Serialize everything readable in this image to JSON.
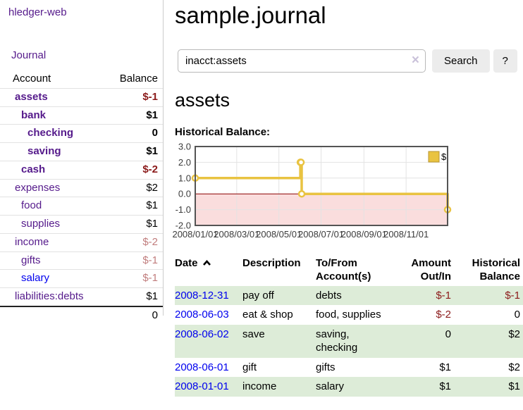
{
  "sidebar": {
    "brand": "hledger-web",
    "journal_link": "Journal",
    "account_header": "Account",
    "balance_header": "Balance",
    "accounts": [
      {
        "name": "assets",
        "balance": "$-1"
      },
      {
        "name": "bank",
        "balance": "$1"
      },
      {
        "name": "checking",
        "balance": "0"
      },
      {
        "name": "saving",
        "balance": "$1"
      },
      {
        "name": "cash",
        "balance": "$-2"
      },
      {
        "name": "expenses",
        "balance": "$2"
      },
      {
        "name": "food",
        "balance": "$1"
      },
      {
        "name": "supplies",
        "balance": "$1"
      },
      {
        "name": "income",
        "balance": "$-2"
      },
      {
        "name": "gifts",
        "balance": "$-1"
      },
      {
        "name": "salary",
        "balance": "$-1"
      },
      {
        "name": "liabilities:debts",
        "balance": "$1"
      }
    ],
    "total": "0"
  },
  "main": {
    "title": "sample.journal",
    "search": {
      "value": "inacct:assets",
      "clear_icon": "×",
      "button_label": "Search",
      "help_label": "?"
    },
    "account_heading": "assets",
    "register": {
      "headers": {
        "date": "Date",
        "description": "Description",
        "accounts": "To/From Account(s)",
        "amount": "Amount Out/In",
        "balance": "Historical Balance"
      },
      "rows": [
        {
          "date": "2008-12-31",
          "description": "pay off",
          "accounts": "debts",
          "amount": "$-1",
          "balance": "$-1"
        },
        {
          "date": "2008-06-03",
          "description": "eat & shop",
          "accounts": "food, supplies",
          "amount": "$-2",
          "balance": "0"
        },
        {
          "date": "2008-06-02",
          "description": "save",
          "accounts": "saving, checking",
          "amount": "0",
          "balance": "$2"
        },
        {
          "date": "2008-06-01",
          "description": "gift",
          "accounts": "gifts",
          "amount": "$1",
          "balance": "$2"
        },
        {
          "date": "2008-01-01",
          "description": "income",
          "accounts": "salary",
          "amount": "$1",
          "balance": "$1"
        }
      ]
    }
  },
  "chart_data": {
    "type": "line",
    "title": "Historical Balance:",
    "step": true,
    "series": [
      {
        "name": "$",
        "color": "#e9c341",
        "points": [
          [
            "2008-01-01",
            1
          ],
          [
            "2008-06-01",
            2
          ],
          [
            "2008-06-02",
            2
          ],
          [
            "2008-06-03",
            0
          ],
          [
            "2008-12-31",
            -1
          ]
        ]
      }
    ],
    "xlim": [
      "2008-01-01",
      "2008-12-31"
    ],
    "ylim": [
      -2,
      3
    ],
    "x_ticks": [
      "2008/01/01",
      "2008/03/01",
      "2008/05/01",
      "2008/07/01",
      "2008/09/01",
      "2008/11/01"
    ],
    "y_ticks": [
      3,
      2,
      1,
      0,
      -1,
      -2
    ],
    "grid": true,
    "legend_position": "top-right",
    "negative_region_color": "#fadddd",
    "zero_line_color": "#8b0000",
    "border_color": "#545454",
    "grid_color": "#e3e3e3"
  }
}
